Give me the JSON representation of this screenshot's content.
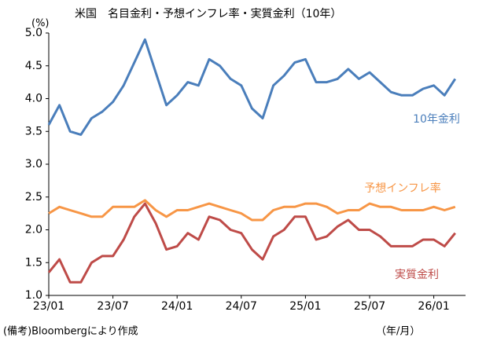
{
  "chart_data": {
    "type": "line",
    "title": "米国　名目金利・予想インフレ率・実質金利（10年）",
    "y_unit": "(%)",
    "x_label": "（年/月）",
    "note": "(備考)Bloombergにより作成",
    "categories": [
      "23/01",
      null,
      null,
      null,
      null,
      null,
      "23/07",
      null,
      null,
      null,
      null,
      null,
      "24/01",
      null,
      null,
      null,
      null,
      null,
      "24/07",
      null,
      null,
      null,
      null,
      null,
      "25/01",
      null,
      null,
      null,
      null,
      null,
      "25/07",
      null,
      null,
      null,
      null,
      null,
      "26/01",
      null,
      null
    ],
    "series": [
      {
        "name": "10年金利",
        "color": "#4a7ebb",
        "values": [
          3.6,
          3.9,
          3.5,
          3.45,
          3.7,
          3.8,
          3.95,
          4.2,
          4.55,
          4.9,
          4.4,
          3.9,
          4.05,
          4.25,
          4.2,
          4.6,
          4.5,
          4.3,
          4.2,
          3.85,
          3.7,
          4.2,
          4.35,
          4.55,
          4.6,
          4.25,
          4.25,
          4.3,
          4.45,
          4.3,
          4.4,
          4.25,
          4.1,
          4.05,
          4.05,
          4.15,
          4.2,
          4.05,
          4.3
        ]
      },
      {
        "name": "予想インフレ率",
        "color": "#f79646",
        "values": [
          2.25,
          2.35,
          2.3,
          2.25,
          2.2,
          2.2,
          2.35,
          2.35,
          2.35,
          2.45,
          2.3,
          2.2,
          2.3,
          2.3,
          2.35,
          2.4,
          2.35,
          2.3,
          2.25,
          2.15,
          2.15,
          2.3,
          2.35,
          2.35,
          2.4,
          2.4,
          2.35,
          2.25,
          2.3,
          2.3,
          2.4,
          2.35,
          2.35,
          2.3,
          2.3,
          2.3,
          2.35,
          2.3,
          2.35
        ]
      },
      {
        "name": "実質金利",
        "color": "#be4b48",
        "values": [
          1.35,
          1.55,
          1.2,
          1.2,
          1.5,
          1.6,
          1.6,
          1.85,
          2.2,
          2.4,
          2.1,
          1.7,
          1.75,
          1.95,
          1.85,
          2.2,
          2.15,
          2.0,
          1.95,
          1.7,
          1.55,
          1.9,
          2.0,
          2.2,
          2.2,
          1.85,
          1.9,
          2.05,
          2.15,
          2.0,
          2.0,
          1.9,
          1.75,
          1.75,
          1.75,
          1.85,
          1.85,
          1.75,
          1.95
        ]
      }
    ],
    "ylim": [
      1.0,
      5.0
    ],
    "yticks": [
      {
        "value": 1.0,
        "label": "1.0"
      },
      {
        "value": 1.5,
        "label": "1.5"
      },
      {
        "value": 2.0,
        "label": "2.0"
      },
      {
        "value": 2.5,
        "label": "2.5"
      },
      {
        "value": 3.0,
        "label": "3.0"
      },
      {
        "value": 3.5,
        "label": "3.5"
      },
      {
        "value": 4.0,
        "label": "4.0"
      },
      {
        "value": 4.5,
        "label": "4.5"
      },
      {
        "value": 5.0,
        "label": "5.0"
      }
    ],
    "grid": false
  }
}
